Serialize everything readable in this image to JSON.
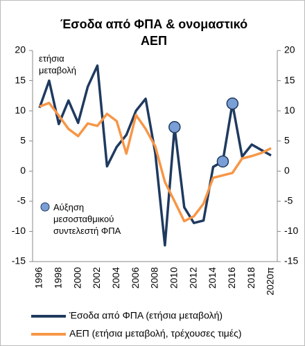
{
  "chart_data": {
    "type": "line",
    "title": [
      "Έσοδα από ΦΠΑ & ονομαστικό",
      "ΑΕΠ"
    ],
    "y_label": "ετήσια μεταβολή",
    "categories": [
      "1996",
      null,
      "1998",
      null,
      "2000",
      null,
      "2002",
      null,
      "2004",
      null,
      "2006",
      null,
      "2008",
      null,
      "2010",
      null,
      "2012",
      null,
      "2014",
      null,
      "2016",
      null,
      "2018",
      null,
      "2020π"
    ],
    "series": [
      {
        "name": "Έσοδα από ΦΠΑ (ετήσια μεταβολή)",
        "color": "#1f3a5f",
        "style": "line",
        "values": [
          10.5,
          15,
          7.8,
          11.7,
          8,
          14,
          17.5,
          0.8,
          4,
          6,
          10,
          12,
          3,
          -12.3,
          7.3,
          -6,
          -8.6,
          -8.2,
          0.7,
          1.6,
          11.2,
          2.4,
          4.4,
          3.5,
          2.6
        ]
      },
      {
        "name": "ΑΕΠ (ετήσια μεταβολή, τρέχουσες τιμές)",
        "color": "#f79646",
        "style": "line",
        "values": [
          10.7,
          11.3,
          9.2,
          7,
          5.8,
          7.9,
          7.5,
          9.5,
          8.3,
          2.9,
          9.3,
          7,
          4.1,
          -1.8,
          -5,
          -8.3,
          -7.5,
          -5.4,
          -1.1,
          -0.7,
          -0.3,
          2.1,
          2.5,
          3,
          3.8
        ]
      },
      {
        "name": "Αύξηση μεσοσταθμικού συντελεστή ΦΠΑ",
        "color": "#7a9fd6",
        "style": "marker",
        "values": [
          null,
          null,
          null,
          null,
          null,
          null,
          null,
          null,
          null,
          null,
          null,
          null,
          null,
          null,
          7.3,
          null,
          null,
          null,
          null,
          1.6,
          11.2,
          null,
          null,
          null,
          null
        ]
      }
    ],
    "ylim": [
      -15,
      20
    ],
    "yticks": [
      -15,
      -10,
      -5,
      0,
      5,
      10,
      15,
      20
    ],
    "y2lim": [
      -15,
      20
    ],
    "y2ticks": [
      -15,
      -10,
      -5,
      0,
      5,
      10,
      15,
      20
    ]
  }
}
